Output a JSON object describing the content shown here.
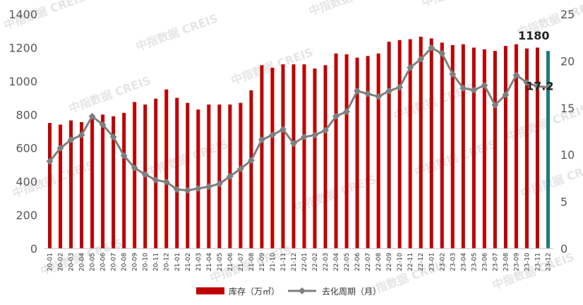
{
  "chart_data": {
    "type": "bar",
    "categories": [
      "20-01",
      "20-02",
      "20-03",
      "20-04",
      "20-05",
      "20-06",
      "20-07",
      "20-08",
      "20-09",
      "20-10",
      "20-11",
      "20-12",
      "21-01",
      "21-02",
      "21-03",
      "21-04",
      "21-05",
      "21-06",
      "21-07",
      "21-08",
      "21-09",
      "21-10",
      "21-11",
      "21-12",
      "22-01",
      "22-02",
      "22-03",
      "22-04",
      "22-05",
      "22-06",
      "22-07",
      "22-08",
      "22-09",
      "22-10",
      "22-11",
      "22-12",
      "23-01",
      "23-02",
      "23-03",
      "23-04",
      "23-05",
      "23-06",
      "23-07",
      "23-08",
      "23-09",
      "23-10",
      "23-11",
      "23-12"
    ],
    "series": [
      {
        "name": "库存（万㎡）",
        "type": "bar",
        "axis": "left",
        "color": "#c00000",
        "highlight_color": "#1f7a80",
        "values": [
          750,
          740,
          765,
          755,
          780,
          800,
          790,
          810,
          875,
          860,
          895,
          950,
          900,
          870,
          830,
          860,
          860,
          860,
          870,
          945,
          1095,
          1080,
          1100,
          1100,
          1100,
          1075,
          1095,
          1165,
          1160,
          1140,
          1150,
          1165,
          1235,
          1245,
          1250,
          1265,
          1255,
          1230,
          1215,
          1220,
          1200,
          1190,
          1180,
          1210,
          1220,
          1195,
          1200,
          1180
        ]
      },
      {
        "name": "去化周期（月）",
        "type": "line",
        "axis": "right",
        "color": "#7f7f7f",
        "values": [
          9.3,
          10.7,
          11.6,
          12.1,
          14.1,
          13.2,
          11.9,
          9.9,
          8.6,
          7.9,
          7.3,
          7.1,
          6.3,
          6.2,
          6.4,
          6.6,
          6.9,
          7.7,
          8.5,
          9.4,
          11.6,
          12.1,
          12.7,
          11.2,
          11.9,
          12.1,
          12.6,
          14.1,
          14.6,
          16.8,
          16.5,
          16.2,
          16.8,
          17.2,
          19.3,
          20.2,
          21.4,
          20.8,
          18.6,
          17.1,
          16.9,
          17.4,
          15.3,
          16.4,
          18.5,
          17.7,
          17.3,
          17.2
        ]
      }
    ],
    "yaxis_left": {
      "range": [
        0,
        1400
      ],
      "ticks": [
        "0",
        "200",
        "400",
        "600",
        "800",
        "1000",
        "1200",
        "1400"
      ]
    },
    "yaxis_right": {
      "range": [
        0,
        25
      ],
      "ticks": [
        "0",
        "5",
        "10",
        "15",
        "20",
        "25"
      ]
    },
    "annotations": {
      "last_bar_value": "1180",
      "last_line_value": "17.2"
    },
    "legend": {
      "placement": "bottom",
      "bar_label": "库存（万㎡）",
      "line_label": "去化周期（月）"
    },
    "grid": false,
    "xlabel": "",
    "ylabel": ""
  },
  "watermark": {
    "text": "中指数据 CREIS"
  }
}
